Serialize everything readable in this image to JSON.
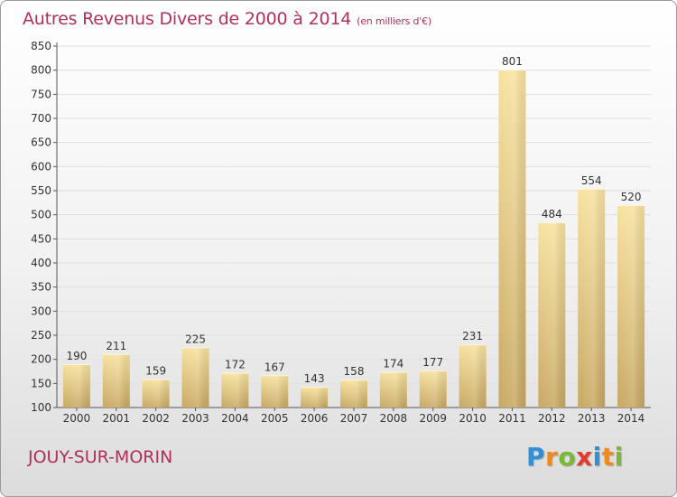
{
  "title": "Autres Revenus Divers de 2000 à 2014",
  "subtitle": "(en milliers d'€)",
  "commune": "JOUY-SUR-MORIN",
  "logo": {
    "letters": [
      "P",
      "r",
      "o",
      "x",
      "i",
      "t",
      "i"
    ],
    "colors": [
      "#2f8fd8",
      "#f08a1c",
      "#79b933",
      "#e23b2e",
      "#2f8fd8",
      "#f08a1c",
      "#79b933"
    ]
  },
  "colors": {
    "title": "#b0305a",
    "bar_light": "#f7e2a0",
    "bar_dark": "#c8a862",
    "axis": "#555555",
    "grid": "#e0e0e0"
  },
  "chart_data": {
    "type": "bar",
    "categories": [
      "2000",
      "2001",
      "2002",
      "2003",
      "2004",
      "2005",
      "2006",
      "2007",
      "2008",
      "2009",
      "2010",
      "2011",
      "2012",
      "2013",
      "2014"
    ],
    "values": [
      190,
      211,
      159,
      225,
      172,
      167,
      143,
      158,
      174,
      177,
      231,
      801,
      484,
      554,
      520
    ],
    "ylim": [
      100,
      850
    ],
    "yticks": [
      100,
      150,
      200,
      250,
      300,
      350,
      400,
      450,
      500,
      550,
      600,
      650,
      700,
      750,
      800,
      850
    ],
    "title": "Autres Revenus Divers de 2000 à 2014",
    "xlabel": "",
    "ylabel": "",
    "grid": true
  }
}
